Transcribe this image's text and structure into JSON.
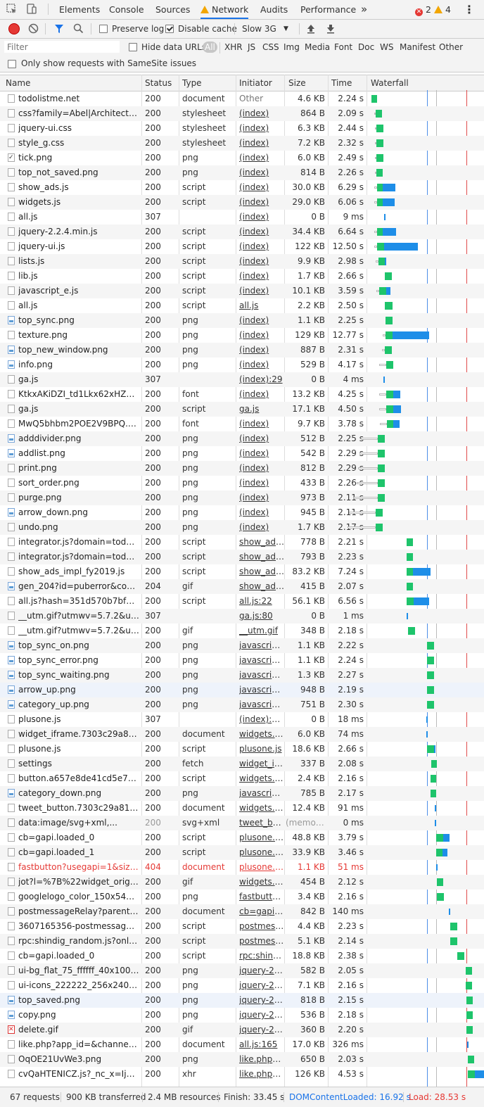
{
  "tabs": [
    "Elements",
    "Console",
    "Sources",
    "Network",
    "Audits",
    "Performance"
  ],
  "more_tabs": "»",
  "errors": "2",
  "warnings": "4",
  "toolbar": {
    "preserve_log": "Preserve log",
    "disable_cache": "Disable cache",
    "throttle": "Slow 3G"
  },
  "filter": {
    "placeholder": "Filter",
    "hide_data_urls": "Hide data URLs",
    "types": [
      "All",
      "XHR",
      "JS",
      "CSS",
      "Img",
      "Media",
      "Font",
      "Doc",
      "WS",
      "Manifest",
      "Other"
    ]
  },
  "samesite": "Only show requests with SameSite issues",
  "columns": {
    "name": "Name",
    "status": "Status",
    "type": "Type",
    "initiator": "Initiator",
    "size": "Size",
    "time": "Time",
    "waterfall": "Waterfall"
  },
  "requests": [
    {
      "name": "todolistme.net",
      "status": "200",
      "type": "document",
      "initiator": "Other",
      "size": "4.6 KB",
      "time": "2.24 s",
      "icon": "doc"
    },
    {
      "name": "css?family=Abel|Architects+D...",
      "status": "200",
      "type": "stylesheet",
      "initiator": "(index)",
      "size": "864 B",
      "time": "2.09 s",
      "icon": "doc"
    },
    {
      "name": "jquery-ui.css",
      "status": "200",
      "type": "stylesheet",
      "initiator": "(index)",
      "size": "6.3 KB",
      "time": "2.44 s",
      "icon": "doc"
    },
    {
      "name": "style_g.css",
      "status": "200",
      "type": "stylesheet",
      "initiator": "(index)",
      "size": "7.2 KB",
      "time": "2.32 s",
      "icon": "doc"
    },
    {
      "name": "tick.png",
      "status": "200",
      "type": "png",
      "initiator": "(index)",
      "size": "6.0 KB",
      "time": "2.49 s",
      "icon": "check"
    },
    {
      "name": "top_not_saved.png",
      "status": "200",
      "type": "png",
      "initiator": "(index)",
      "size": "814 B",
      "time": "2.26 s",
      "icon": "doc"
    },
    {
      "name": "show_ads.js",
      "status": "200",
      "type": "script",
      "initiator": "(index)",
      "size": "30.0 KB",
      "time": "6.29 s",
      "icon": "doc"
    },
    {
      "name": "widgets.js",
      "status": "200",
      "type": "script",
      "initiator": "(index)",
      "size": "29.0 KB",
      "time": "6.06 s",
      "icon": "doc"
    },
    {
      "name": "all.js",
      "status": "307",
      "type": "",
      "initiator": "(index)",
      "size": "0 B",
      "time": "9 ms",
      "icon": "doc"
    },
    {
      "name": "jquery-2.2.4.min.js",
      "status": "200",
      "type": "script",
      "initiator": "(index)",
      "size": "34.4 KB",
      "time": "6.64 s",
      "icon": "doc"
    },
    {
      "name": "jquery-ui.js",
      "status": "200",
      "type": "script",
      "initiator": "(index)",
      "size": "122 KB",
      "time": "12.50 s",
      "icon": "doc"
    },
    {
      "name": "lists.js",
      "status": "200",
      "type": "script",
      "initiator": "(index)",
      "size": "9.9 KB",
      "time": "2.98 s",
      "icon": "doc"
    },
    {
      "name": "lib.js",
      "status": "200",
      "type": "script",
      "initiator": "(index)",
      "size": "1.7 KB",
      "time": "2.66 s",
      "icon": "doc"
    },
    {
      "name": "javascript_e.js",
      "status": "200",
      "type": "script",
      "initiator": "(index)",
      "size": "10.1 KB",
      "time": "3.59 s",
      "icon": "doc"
    },
    {
      "name": "all.js",
      "status": "200",
      "type": "script",
      "initiator": "all.js",
      "size": "2.2 KB",
      "time": "2.50 s",
      "icon": "doc"
    },
    {
      "name": "top_sync.png",
      "status": "200",
      "type": "png",
      "initiator": "(index)",
      "size": "1.1 KB",
      "time": "2.25 s",
      "icon": "img"
    },
    {
      "name": "texture.png",
      "status": "200",
      "type": "png",
      "initiator": "(index)",
      "size": "129 KB",
      "time": "12.77 s",
      "icon": "doc"
    },
    {
      "name": "top_new_window.png",
      "status": "200",
      "type": "png",
      "initiator": "(index)",
      "size": "887 B",
      "time": "2.31 s",
      "icon": "img"
    },
    {
      "name": "info.png",
      "status": "200",
      "type": "png",
      "initiator": "(index)",
      "size": "529 B",
      "time": "4.17 s",
      "icon": "img"
    },
    {
      "name": "ga.js",
      "status": "307",
      "type": "",
      "initiator": "(index):29",
      "size": "0 B",
      "time": "4 ms",
      "icon": "doc"
    },
    {
      "name": "KtkxAKiDZI_td1Lkx62xHZHDtg...",
      "status": "200",
      "type": "font",
      "initiator": "(index)",
      "size": "13.2 KB",
      "time": "4.25 s",
      "icon": "doc"
    },
    {
      "name": "ga.js",
      "status": "200",
      "type": "script",
      "initiator": "ga.js",
      "size": "17.1 KB",
      "time": "4.50 s",
      "icon": "doc"
    },
    {
      "name": "MwQ5bhbm2POE2V9BPQ.woff2",
      "status": "200",
      "type": "font",
      "initiator": "(index)",
      "size": "9.7 KB",
      "time": "3.78 s",
      "icon": "doc"
    },
    {
      "name": "adddivider.png",
      "status": "200",
      "type": "png",
      "initiator": "(index)",
      "size": "512 B",
      "time": "2.25 s",
      "icon": "img"
    },
    {
      "name": "addlist.png",
      "status": "200",
      "type": "png",
      "initiator": "(index)",
      "size": "542 B",
      "time": "2.29 s",
      "icon": "img"
    },
    {
      "name": "print.png",
      "status": "200",
      "type": "png",
      "initiator": "(index)",
      "size": "812 B",
      "time": "2.29 s",
      "icon": "doc"
    },
    {
      "name": "sort_order.png",
      "status": "200",
      "type": "png",
      "initiator": "(index)",
      "size": "433 B",
      "time": "2.26 s",
      "icon": "doc"
    },
    {
      "name": "purge.png",
      "status": "200",
      "type": "png",
      "initiator": "(index)",
      "size": "973 B",
      "time": "2.11 s",
      "icon": "doc"
    },
    {
      "name": "arrow_down.png",
      "status": "200",
      "type": "png",
      "initiator": "(index)",
      "size": "945 B",
      "time": "2.11 s",
      "icon": "img"
    },
    {
      "name": "undo.png",
      "status": "200",
      "type": "png",
      "initiator": "(index)",
      "size": "1.7 KB",
      "time": "2.17 s",
      "icon": "doc"
    },
    {
      "name": "integrator.js?domain=todolist...",
      "status": "200",
      "type": "script",
      "initiator": "show_ads...",
      "size": "778 B",
      "time": "2.21 s",
      "icon": "doc"
    },
    {
      "name": "integrator.js?domain=todolist...",
      "status": "200",
      "type": "script",
      "initiator": "show_ads...",
      "size": "793 B",
      "time": "2.23 s",
      "icon": "doc"
    },
    {
      "name": "show_ads_impl_fy2019.js",
      "status": "200",
      "type": "script",
      "initiator": "show_ads...",
      "size": "83.2 KB",
      "time": "7.24 s",
      "icon": "doc"
    },
    {
      "name": "gen_204?id=puberror&contex...",
      "status": "204",
      "type": "gif",
      "initiator": "show_ads...",
      "size": "415 B",
      "time": "2.07 s",
      "icon": "img"
    },
    {
      "name": "all.js?hash=351d570b7bfad02...",
      "status": "200",
      "type": "script",
      "initiator": "all.js:22",
      "size": "56.1 KB",
      "time": "6.56 s",
      "icon": "doc"
    },
    {
      "name": "__utm.gif?utmwv=5.7.2&utms...",
      "status": "307",
      "type": "",
      "initiator": "ga.js:80",
      "size": "0 B",
      "time": "1 ms",
      "icon": "doc"
    },
    {
      "name": "__utm.gif?utmwv=5.7.2&utms...",
      "status": "200",
      "type": "gif",
      "initiator": "__utm.gif",
      "size": "348 B",
      "time": "2.18 s",
      "icon": "doc"
    },
    {
      "name": "top_sync_on.png",
      "status": "200",
      "type": "png",
      "initiator": "javascript...",
      "size": "1.1 KB",
      "time": "2.22 s",
      "icon": "img"
    },
    {
      "name": "top_sync_error.png",
      "status": "200",
      "type": "png",
      "initiator": "javascript...",
      "size": "1.1 KB",
      "time": "2.24 s",
      "icon": "img"
    },
    {
      "name": "top_sync_waiting.png",
      "status": "200",
      "type": "png",
      "initiator": "javascript...",
      "size": "1.3 KB",
      "time": "2.27 s",
      "icon": "img"
    },
    {
      "name": "arrow_up.png",
      "status": "200",
      "type": "png",
      "initiator": "javascript...",
      "size": "948 B",
      "time": "2.19 s",
      "icon": "img"
    },
    {
      "name": "category_up.png",
      "status": "200",
      "type": "png",
      "initiator": "javascript...",
      "size": "751 B",
      "time": "2.30 s",
      "icon": "img"
    },
    {
      "name": "plusone.js",
      "status": "307",
      "type": "",
      "initiator": "(index):261",
      "size": "0 B",
      "time": "18 ms",
      "icon": "doc"
    },
    {
      "name": "widget_iframe.7303c29a8108b...",
      "status": "200",
      "type": "document",
      "initiator": "widgets.js:8",
      "size": "6.0 KB",
      "time": "74 ms",
      "icon": "doc"
    },
    {
      "name": "plusone.js",
      "status": "200",
      "type": "script",
      "initiator": "plusone.js",
      "size": "18.6 KB",
      "time": "2.66 s",
      "icon": "doc"
    },
    {
      "name": "settings",
      "status": "200",
      "type": "fetch",
      "initiator": "widget_ifr...",
      "size": "337 B",
      "time": "2.08 s",
      "icon": "doc"
    },
    {
      "name": "button.a657e8de41cd5e7b38c...",
      "status": "200",
      "type": "script",
      "initiator": "widgets.js:1",
      "size": "2.4 KB",
      "time": "2.16 s",
      "icon": "doc"
    },
    {
      "name": "category_down.png",
      "status": "200",
      "type": "png",
      "initiator": "javascript...",
      "size": "785 B",
      "time": "2.17 s",
      "icon": "img"
    },
    {
      "name": "tweet_button.7303c29a8108b...",
      "status": "200",
      "type": "document",
      "initiator": "widgets.js:8",
      "size": "12.4 KB",
      "time": "91 ms",
      "icon": "doc"
    },
    {
      "name": "data:image/svg+xml,...",
      "status": "200",
      "type": "svg+xml",
      "initiator": "tweet_bu...",
      "size": "(memor...",
      "time": "0 ms",
      "icon": "doc"
    },
    {
      "name": "cb=gapi.loaded_0",
      "status": "200",
      "type": "script",
      "initiator": "plusone.j...",
      "size": "48.8 KB",
      "time": "3.79 s",
      "icon": "doc"
    },
    {
      "name": "cb=gapi.loaded_1",
      "status": "200",
      "type": "script",
      "initiator": "plusone.j...",
      "size": "33.9 KB",
      "time": "3.46 s",
      "icon": "doc"
    },
    {
      "name": "fastbutton?usegapi=1&size=...",
      "status": "404",
      "type": "document",
      "initiator": "plusone.j...",
      "size": "1.1 KB",
      "time": "51 ms",
      "icon": "doc"
    },
    {
      "name": "jot?l=%7B%22widget_origin%...",
      "status": "200",
      "type": "gif",
      "initiator": "widgets.js:8",
      "size": "454 B",
      "time": "2.12 s",
      "icon": "doc"
    },
    {
      "name": "googlelogo_color_150x54dp.p...",
      "status": "200",
      "type": "png",
      "initiator": "fastbutto...",
      "size": "3.4 KB",
      "time": "2.16 s",
      "icon": "doc"
    },
    {
      "name": "postmessageRelay?parent=htt...",
      "status": "200",
      "type": "document",
      "initiator": "cb=gapi.l...",
      "size": "842 B",
      "time": "140 ms",
      "icon": "doc"
    },
    {
      "name": "3607165356-postmessagerela...",
      "status": "200",
      "type": "script",
      "initiator": "postmess...",
      "size": "4.4 KB",
      "time": "2.23 s",
      "icon": "doc"
    },
    {
      "name": "rpc:shindig_random.js?onload...",
      "status": "200",
      "type": "script",
      "initiator": "postmess...",
      "size": "5.1 KB",
      "time": "2.14 s",
      "icon": "doc"
    },
    {
      "name": "cb=gapi.loaded_0",
      "status": "200",
      "type": "script",
      "initiator": "rpc:shindi...",
      "size": "18.8 KB",
      "time": "2.38 s",
      "icon": "doc"
    },
    {
      "name": "ui-bg_flat_75_ffffff_40x100.png",
      "status": "200",
      "type": "png",
      "initiator": "jquery-2....",
      "size": "582 B",
      "time": "2.05 s",
      "icon": "doc"
    },
    {
      "name": "ui-icons_222222_256x240.png",
      "status": "200",
      "type": "png",
      "initiator": "jquery-2....",
      "size": "7.1 KB",
      "time": "2.16 s",
      "icon": "doc"
    },
    {
      "name": "top_saved.png",
      "status": "200",
      "type": "png",
      "initiator": "jquery-2....",
      "size": "818 B",
      "time": "2.15 s",
      "icon": "img"
    },
    {
      "name": "copy.png",
      "status": "200",
      "type": "png",
      "initiator": "jquery-2....",
      "size": "536 B",
      "time": "2.18 s",
      "icon": "img"
    },
    {
      "name": "delete.gif",
      "status": "200",
      "type": "gif",
      "initiator": "jquery-2....",
      "size": "360 B",
      "time": "2.20 s",
      "icon": "red"
    },
    {
      "name": "like.php?app_id=&channel=ht...",
      "status": "200",
      "type": "document",
      "initiator": "all.js:165",
      "size": "17.0 KB",
      "time": "326 ms",
      "icon": "doc"
    },
    {
      "name": "OqOE21UvWe3.png",
      "status": "200",
      "type": "png",
      "initiator": "like.php?...",
      "size": "650 B",
      "time": "2.03 s",
      "icon": "doc"
    },
    {
      "name": "cvQaHTENICZ.js?_nc_x=Ij3Wp...",
      "status": "200",
      "type": "xhr",
      "initiator": "like.php?...",
      "size": "126 KB",
      "time": "4.53 s",
      "icon": "doc"
    }
  ],
  "statusbar": {
    "requests": "67 requests",
    "transferred": "900 KB transferred",
    "resources": "2.4 MB resources",
    "finish": "Finish: 33.45 s",
    "dcl": "DOMContentLoaded: 16.92 s",
    "load": "Load: 28.53 s"
  },
  "colors": {
    "dcl": "#1a73e8",
    "load": "#e53935",
    "waiting": "#1ec46b",
    "download": "#1e8ee8"
  }
}
